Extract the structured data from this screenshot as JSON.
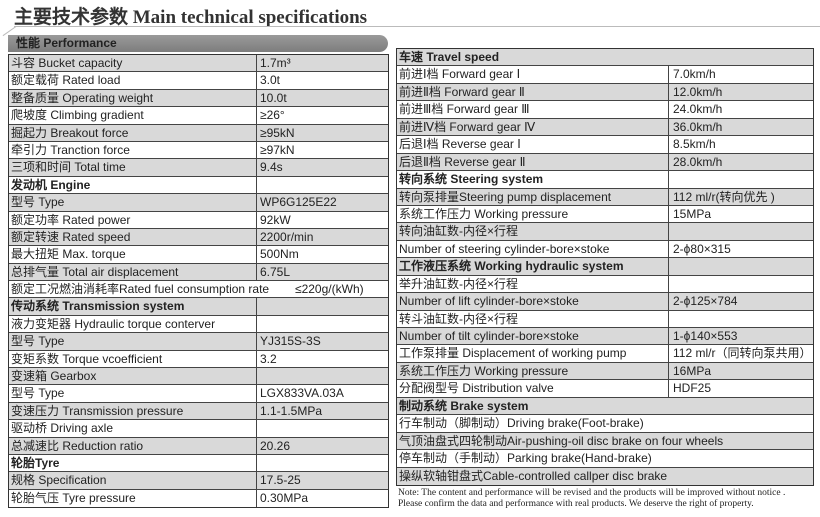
{
  "title": "主要技术参数 Main technical specifications",
  "performance_header": "性能 Performance",
  "left_rows": [
    {
      "k": "斗容 Bucket capacity",
      "v": "1.7m³"
    },
    {
      "k": "额定载荷 Rated load",
      "v": "3.0t"
    },
    {
      "k": "整备质量 Operating weight",
      "v": "10.0t"
    },
    {
      "k": "爬坡度 Climbing gradient",
      "v": "≥26°"
    },
    {
      "k": "掘起力 Breakout force",
      "v": "≥95kN"
    },
    {
      "k": "牵引力 Tranction force",
      "v": "≥97kN"
    },
    {
      "k": "三项和时间 Total time",
      "v": "9.4s"
    },
    {
      "k": "发动机 Engine",
      "v": "",
      "header": true
    },
    {
      "k": "型号 Type",
      "v": "WP6G125E22"
    },
    {
      "k": "额定功率 Rated power",
      "v": "92kW"
    },
    {
      "k": "额定转速 Rated speed",
      "v": "2200r/min"
    },
    {
      "k": "最大扭矩 Max. torque",
      "v": "500Nm"
    },
    {
      "k": "总排气量 Total air displacement",
      "v": "6.75L"
    },
    {
      "k": "额定工况燃油消耗率Rated fuel consumption rate",
      "v": "≤220g/(kWh)",
      "nodiv": true
    },
    {
      "k": "传动系统 Transmission system",
      "v": "",
      "header": true
    },
    {
      "k": "液力变矩器 Hydraulic torque conterver",
      "v": ""
    },
    {
      "k": "型号 Type",
      "v": "YJ315S-3S"
    },
    {
      "k": "变矩系数 Torque vcoefficient",
      "v": "3.2"
    },
    {
      "k": "变速箱 Gearbox",
      "v": ""
    },
    {
      "k": "型号 Type",
      "v": "LGX833VA.03A"
    },
    {
      "k": "变速压力 Transmission pressure",
      "v": "1.1-1.5MPa"
    },
    {
      "k": "驱动桥 Driving axle",
      "v": ""
    },
    {
      "k": "总减速比 Reduction ratio",
      "v": "20.26"
    },
    {
      "k": "轮胎Tyre",
      "v": "",
      "header": true
    },
    {
      "k": "规格 Specification",
      "v": "17.5-25"
    },
    {
      "k": "轮胎气压 Tyre pressure",
      "v": "0.30MPa"
    }
  ],
  "right_rows": [
    {
      "k": "车速 Travel speed",
      "v": "",
      "header": true,
      "full": true
    },
    {
      "k": "前进Ⅰ档 Forward gear Ⅰ",
      "v": "7.0km/h"
    },
    {
      "k": "前进Ⅱ档 Forward gear Ⅱ",
      "v": "12.0km/h"
    },
    {
      "k": "前进Ⅲ档 Forward gear Ⅲ",
      "v": "24.0km/h"
    },
    {
      "k": "前进Ⅳ档 Forward gear Ⅳ",
      "v": "36.0km/h"
    },
    {
      "k": "后退Ⅰ档 Reverse gear Ⅰ",
      "v": "8.5km/h"
    },
    {
      "k": "后退Ⅱ档 Reverse gear Ⅱ",
      "v": "28.0km/h"
    },
    {
      "k": "转向系统 Steering system",
      "v": "",
      "header": true
    },
    {
      "k": "转向泵排量Steering pump displacement",
      "v": "112 ml/r(转向优先 )"
    },
    {
      "k": "系统工作压力 Working pressure",
      "v": "15MPa"
    },
    {
      "k": "转向油缸数-内径×行程",
      "v": ""
    },
    {
      "k": "Number of steering cylinder-bore×stoke",
      "v": "2-ϕ80×315"
    },
    {
      "k": "工作液压系统 Working hydraulic system",
      "v": "",
      "header": true
    },
    {
      "k": "举升油缸数-内径×行程",
      "v": ""
    },
    {
      "k": "Number of lift cylinder-bore×stoke",
      "v": "2-ϕ125×784"
    },
    {
      "k": "转斗油缸数-内径×行程",
      "v": ""
    },
    {
      "k": "Number of tilt cylinder-bore×stoke",
      "v": "1-ϕ140×553"
    },
    {
      "k": "工作泵排量 Displacement of working pump",
      "v": "112 ml/r（同转向泵共用）"
    },
    {
      "k": "系统工作压力 Working pressure",
      "v": "16MPa"
    },
    {
      "k": "分配阀型号 Distribution valve",
      "v": "HDF25"
    },
    {
      "k": "制动系统 Brake system",
      "v": "",
      "header": true,
      "full": true
    },
    {
      "k": "行车制动（脚制动）Driving brake(Foot-brake)",
      "v": "",
      "full": true
    },
    {
      "k": "气顶油盘式四轮制动Air-pushing-oil disc brake on four wheels",
      "v": "",
      "full": true
    },
    {
      "k": "停车制动（手制动）Parking brake(Hand-brake)",
      "v": "",
      "full": true
    },
    {
      "k": "操纵软轴钳盘式Cable-controlled callper disc brake",
      "v": "",
      "full": true
    }
  ],
  "note": [
    "Note: The content and performance will be revised and the products will be improved without notice .",
    "Please confirm the data and performance with real products. We deserve the right of property."
  ]
}
